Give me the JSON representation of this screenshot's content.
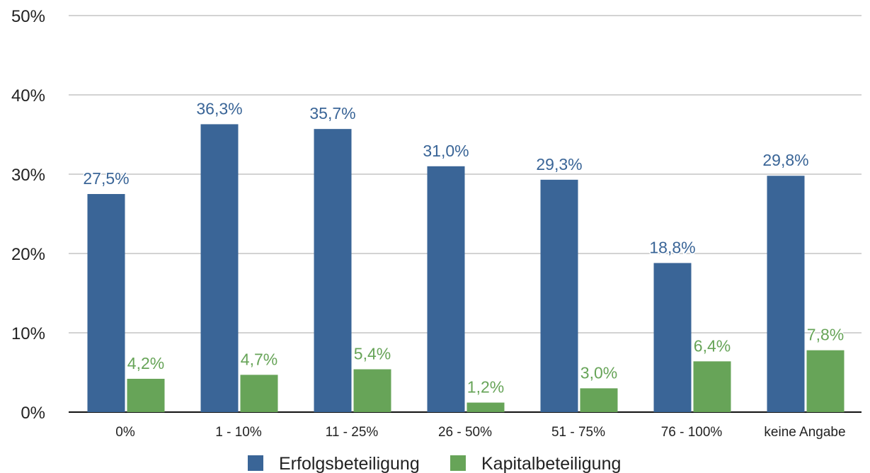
{
  "chart_data": {
    "type": "bar",
    "categories": [
      "0%",
      "1 - 10%",
      "11 - 25%",
      "26 - 50%",
      "51 - 75%",
      "76 - 100%",
      "keine Angabe"
    ],
    "series": [
      {
        "name": "Erfolgsbeteiligung",
        "values": [
          27.5,
          36.3,
          35.7,
          31.0,
          29.3,
          18.8,
          29.8
        ],
        "labels": [
          "27,5%",
          "36,3%",
          "35,7%",
          "31,0%",
          "29,3%",
          "18,8%",
          "29,8%"
        ],
        "color": "#3a6597",
        "label_color": "#3a6597"
      },
      {
        "name": "Kapitalbeteiligung",
        "values": [
          4.2,
          4.7,
          5.4,
          1.2,
          3.0,
          6.4,
          7.8
        ],
        "labels": [
          "4,2%",
          "4,7%",
          "5,4%",
          "1,2%",
          "3,0%",
          "6,4%",
          "7,8%"
        ],
        "color": "#67a458",
        "label_color": "#67a458"
      }
    ],
    "ylim": [
      0,
      50
    ],
    "yticks": [
      "0%",
      "10%",
      "20%",
      "30%",
      "40%",
      "50%"
    ],
    "ytick_values": [
      0,
      10,
      20,
      30,
      40,
      50
    ],
    "grid": true,
    "legend_position": "bottom-center",
    "title": "",
    "xlabel": "",
    "ylabel": ""
  }
}
